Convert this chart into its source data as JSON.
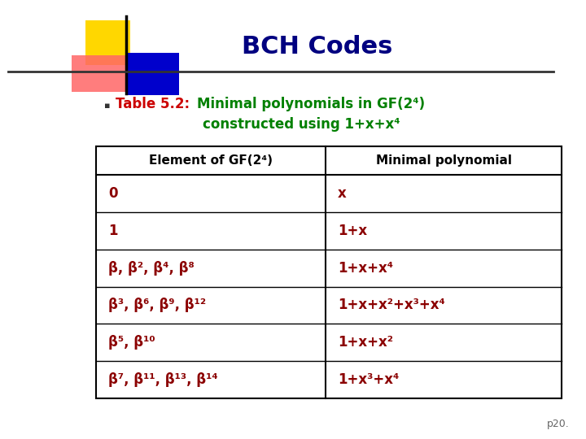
{
  "title": "BCH Codes",
  "title_color": "#000080",
  "title_fontsize": 22,
  "bg_color": "#ffffff",
  "table_header": [
    "Element of GF(2⁴)",
    "Minimal polynomial"
  ],
  "table_rows_left": [
    "0",
    "1",
    "β, β², β⁴, β⁸",
    "β³, β⁶, β⁹, β¹²",
    "β⁵, β¹⁰",
    "β⁷, β¹¹, β¹³, β¹⁴"
  ],
  "table_rows_right": [
    "x",
    "1+x",
    "1+x+x⁴",
    "1+x+x²+x³+x⁴",
    "1+x+x²",
    "1+x³+x⁴"
  ],
  "page_num": "p20.",
  "red_text": "#CC0000",
  "green_text": "#008000",
  "dark_red": "#8B0000",
  "navy": "#000080",
  "yellow": "#FFD700",
  "blue_deco": "#0000CC",
  "red_deco": "#FF6666",
  "table_text_color": "#8B0000",
  "header_text_color": "#000000"
}
